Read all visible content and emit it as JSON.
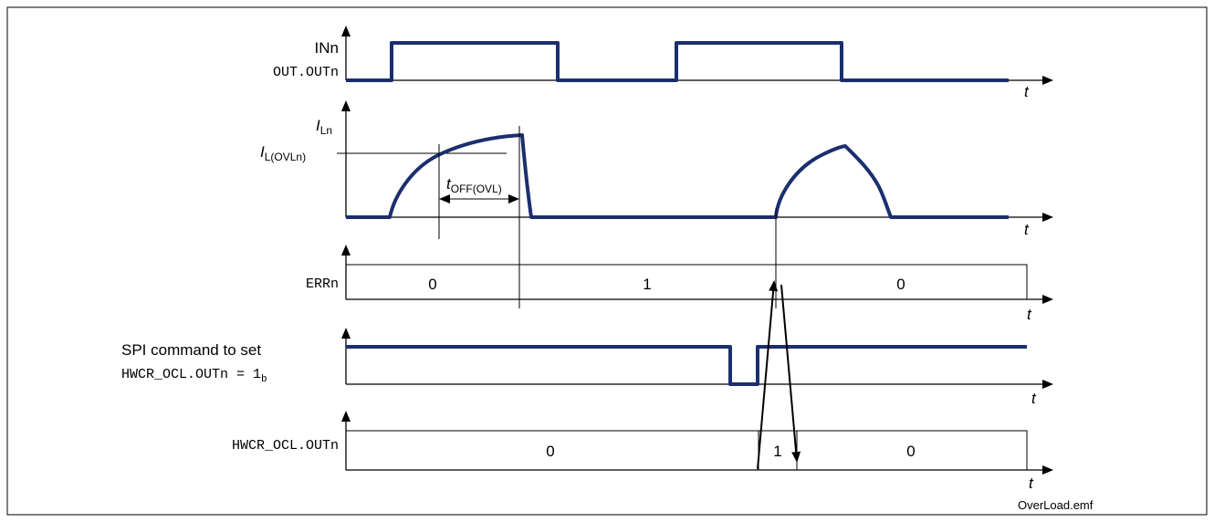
{
  "colors": {
    "signal": "#1b2f6e",
    "line": "#000000",
    "frame": "#000000"
  },
  "signals": {
    "in": {
      "label_top": "INn",
      "label_bottom": "OUT.OUTn"
    },
    "current": {
      "label_main": "I",
      "label_sub": "Ln",
      "threshold_main": "I",
      "threshold_sub": "L(OVLn)"
    },
    "err": {
      "label": "ERRn",
      "states": [
        "0",
        "1",
        "0"
      ]
    },
    "spi": {
      "line1": "SPI command to set",
      "line2": "HWCR_OCL.OUTn = 1",
      "line2_sub": "b"
    },
    "hwcr": {
      "label": "HWCR_OCL.OUTn",
      "states": [
        "0",
        "1",
        "0"
      ]
    }
  },
  "timing": {
    "toff_main": "t",
    "toff_sub": "OFF(OVL)"
  },
  "axis_label": "t",
  "filename": "OverLoad.emf"
}
